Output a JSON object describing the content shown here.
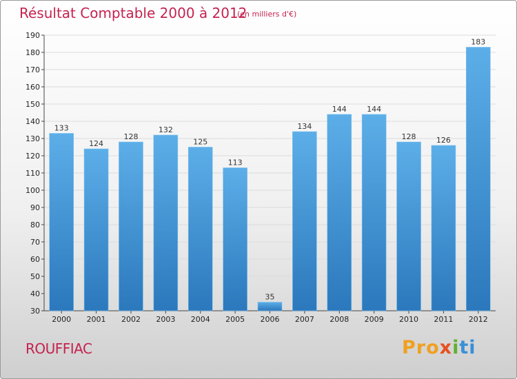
{
  "title": "Résultat Comptable 2000 à 2012",
  "subtitle": "(en milliers d'€)",
  "town": "ROUFFIAC",
  "logo": {
    "p1": "Pro",
    "p2": "x",
    "p3": "i",
    "p4": "ti"
  },
  "colors": {
    "title": "#c4234f",
    "bar_light": "#5aaee8",
    "bar_dark": "#2d7bbf"
  },
  "chart_data": {
    "type": "bar",
    "title": "Résultat Comptable 2000 à 2012",
    "ylabel": "(en milliers d'€)",
    "xlabel": "",
    "categories": [
      "2000",
      "2001",
      "2002",
      "2003",
      "2004",
      "2005",
      "2006",
      "2007",
      "2008",
      "2009",
      "2010",
      "2011",
      "2012"
    ],
    "values": [
      133,
      124,
      128,
      132,
      125,
      113,
      35,
      134,
      144,
      144,
      128,
      126,
      183
    ],
    "ylim": [
      30,
      190
    ],
    "yticks": [
      30,
      40,
      50,
      60,
      70,
      80,
      90,
      100,
      110,
      120,
      130,
      140,
      150,
      160,
      170,
      180,
      190
    ],
    "grid": true,
    "legend": "none"
  }
}
